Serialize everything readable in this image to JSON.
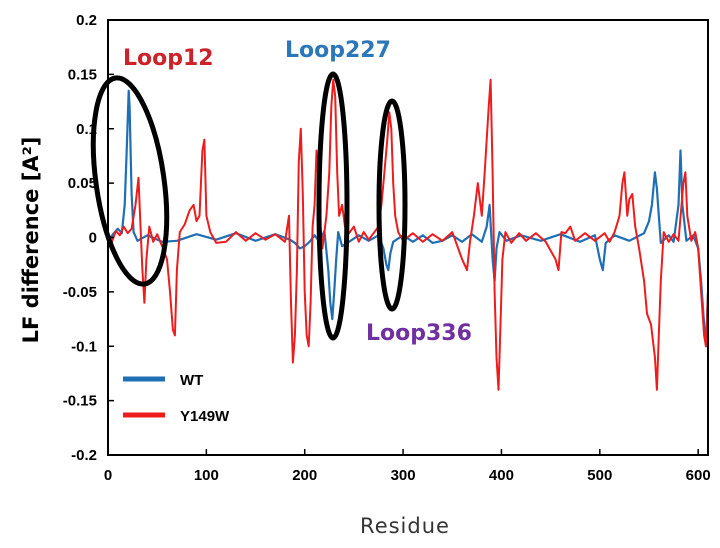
{
  "chart_data": {
    "type": "line",
    "title": "",
    "xlabel": "Residue",
    "ylabel": "LF difference [A²]",
    "xlim": [
      0,
      610
    ],
    "ylim": [
      -0.2,
      0.2
    ],
    "xticks": [
      0,
      100,
      200,
      300,
      400,
      500,
      600
    ],
    "yticks": [
      0.2,
      0.15,
      0.1,
      0.05,
      0,
      -0.05,
      -0.1,
      -0.15,
      -0.2
    ],
    "ytick_labels": [
      "0.2",
      "0.15",
      "0.1",
      "0.05",
      "0",
      "-0.05",
      "-0.1",
      "-0.15",
      "-0.2"
    ],
    "grid": false,
    "legend_position": "bottom-left",
    "series": [
      {
        "name": "WT",
        "color": "#1f6fb5",
        "points": [
          [
            0,
            -0.005
          ],
          [
            5,
            0.003
          ],
          [
            10,
            0.008
          ],
          [
            14,
            0.004
          ],
          [
            17,
            0.03
          ],
          [
            19,
            0.08
          ],
          [
            21,
            0.135
          ],
          [
            22,
            0.12
          ],
          [
            24,
            0.04
          ],
          [
            26,
            0.005
          ],
          [
            30,
            -0.003
          ],
          [
            40,
            0.002
          ],
          [
            55,
            -0.004
          ],
          [
            70,
            -0.003
          ],
          [
            90,
            0.003
          ],
          [
            110,
            -0.002
          ],
          [
            130,
            0.004
          ],
          [
            150,
            -0.003
          ],
          [
            170,
            0.003
          ],
          [
            185,
            -0.002
          ],
          [
            190,
            -0.005
          ],
          [
            195,
            -0.01
          ],
          [
            200,
            -0.008
          ],
          [
            205,
            -0.004
          ],
          [
            210,
            0.002
          ],
          [
            215,
            -0.004
          ],
          [
            220,
            0.006
          ],
          [
            224,
            -0.03
          ],
          [
            226,
            -0.06
          ],
          [
            228,
            -0.075
          ],
          [
            230,
            -0.05
          ],
          [
            232,
            -0.02
          ],
          [
            234,
            0.005
          ],
          [
            238,
            -0.008
          ],
          [
            245,
            -0.004
          ],
          [
            255,
            0.002
          ],
          [
            265,
            -0.003
          ],
          [
            275,
            0.002
          ],
          [
            280,
            -0.01
          ],
          [
            283,
            -0.025
          ],
          [
            285,
            -0.03
          ],
          [
            287,
            -0.015
          ],
          [
            290,
            -0.004
          ],
          [
            300,
            0.002
          ],
          [
            310,
            -0.004
          ],
          [
            320,
            0.002
          ],
          [
            330,
            -0.005
          ],
          [
            340,
            -0.003
          ],
          [
            350,
            0.002
          ],
          [
            360,
            -0.004
          ],
          [
            370,
            0.003
          ],
          [
            380,
            -0.004
          ],
          [
            385,
            0.01
          ],
          [
            388,
            0.03
          ],
          [
            391,
            -0.02
          ],
          [
            393,
            -0.04
          ],
          [
            395,
            -0.01
          ],
          [
            398,
            0.005
          ],
          [
            405,
            -0.003
          ],
          [
            420,
            0.002
          ],
          [
            440,
            -0.003
          ],
          [
            460,
            0.003
          ],
          [
            480,
            -0.004
          ],
          [
            495,
            0.002
          ],
          [
            500,
            -0.02
          ],
          [
            503,
            -0.03
          ],
          [
            506,
            -0.005
          ],
          [
            515,
            0.002
          ],
          [
            530,
            -0.003
          ],
          [
            545,
            0.004
          ],
          [
            550,
            0.015
          ],
          [
            553,
            0.03
          ],
          [
            556,
            0.06
          ],
          [
            558,
            0.045
          ],
          [
            560,
            0.02
          ],
          [
            562,
            -0.005
          ],
          [
            570,
            0.002
          ],
          [
            575,
            -0.004
          ],
          [
            580,
            0.03
          ],
          [
            582,
            0.08
          ],
          [
            584,
            0.03
          ],
          [
            588,
            -0.003
          ],
          [
            595,
            0.002
          ],
          [
            600,
            -0.01
          ],
          [
            603,
            -0.04
          ],
          [
            606,
            -0.08
          ],
          [
            608,
            -0.1
          ],
          [
            610,
            -0.05
          ]
        ]
      },
      {
        "name": "Y149W",
        "color": "#ee1c1c",
        "points": [
          [
            0,
            0.0
          ],
          [
            4,
            -0.004
          ],
          [
            8,
            0.006
          ],
          [
            12,
            0.002
          ],
          [
            16,
            0.01
          ],
          [
            20,
            0.004
          ],
          [
            24,
            0.008
          ],
          [
            28,
            0.03
          ],
          [
            31,
            0.055
          ],
          [
            33,
            0.01
          ],
          [
            35,
            -0.03
          ],
          [
            37,
            -0.06
          ],
          [
            39,
            -0.02
          ],
          [
            42,
            0.01
          ],
          [
            46,
            -0.004
          ],
          [
            50,
            0.003
          ],
          [
            55,
            -0.008
          ],
          [
            60,
            -0.02
          ],
          [
            63,
            -0.05
          ],
          [
            66,
            -0.085
          ],
          [
            68,
            -0.09
          ],
          [
            70,
            -0.03
          ],
          [
            73,
            0.005
          ],
          [
            78,
            0.012
          ],
          [
            83,
            0.025
          ],
          [
            87,
            0.03
          ],
          [
            90,
            0.015
          ],
          [
            93,
            0.02
          ],
          [
            96,
            0.08
          ],
          [
            98,
            0.09
          ],
          [
            100,
            0.02
          ],
          [
            104,
            0.005
          ],
          [
            110,
            -0.005
          ],
          [
            120,
            -0.004
          ],
          [
            130,
            0.005
          ],
          [
            140,
            -0.003
          ],
          [
            150,
            0.004
          ],
          [
            160,
            -0.002
          ],
          [
            170,
            0.003
          ],
          [
            180,
            -0.004
          ],
          [
            184,
            0.02
          ],
          [
            186,
            -0.06
          ],
          [
            188,
            -0.115
          ],
          [
            190,
            -0.09
          ],
          [
            192,
            -0.03
          ],
          [
            194,
            0.07
          ],
          [
            196,
            0.1
          ],
          [
            198,
            0.04
          ],
          [
            200,
            -0.05
          ],
          [
            202,
            -0.09
          ],
          [
            204,
            -0.1
          ],
          [
            206,
            -0.06
          ],
          [
            208,
            0.01
          ],
          [
            210,
            0.03
          ],
          [
            212,
            0.08
          ],
          [
            214,
            0.05
          ],
          [
            216,
            0.01
          ],
          [
            218,
            -0.01
          ],
          [
            222,
            0.02
          ],
          [
            225,
            0.06
          ],
          [
            227,
            0.12
          ],
          [
            229,
            0.145
          ],
          [
            231,
            0.13
          ],
          [
            233,
            0.06
          ],
          [
            235,
            0.02
          ],
          [
            238,
            0.03
          ],
          [
            241,
            0.01
          ],
          [
            245,
            0.004
          ],
          [
            250,
            0.01
          ],
          [
            255,
            -0.004
          ],
          [
            260,
            0.005
          ],
          [
            265,
            -0.002
          ],
          [
            270,
            0.004
          ],
          [
            275,
            0.01
          ],
          [
            278,
            0.03
          ],
          [
            281,
            0.06
          ],
          [
            284,
            0.09
          ],
          [
            286,
            0.115
          ],
          [
            288,
            0.1
          ],
          [
            290,
            0.05
          ],
          [
            292,
            0.02
          ],
          [
            295,
            0.005
          ],
          [
            300,
            -0.003
          ],
          [
            310,
            0.004
          ],
          [
            320,
            -0.004
          ],
          [
            330,
            0.003
          ],
          [
            340,
            -0.003
          ],
          [
            350,
            0.005
          ],
          [
            360,
            -0.02
          ],
          [
            365,
            -0.03
          ],
          [
            368,
            -0.004
          ],
          [
            372,
            0.02
          ],
          [
            376,
            0.05
          ],
          [
            380,
            0.02
          ],
          [
            383,
            0.06
          ],
          [
            385,
            0.09
          ],
          [
            387,
            0.12
          ],
          [
            389,
            0.145
          ],
          [
            391,
            0.06
          ],
          [
            393,
            -0.05
          ],
          [
            395,
            -0.11
          ],
          [
            397,
            -0.14
          ],
          [
            399,
            -0.08
          ],
          [
            401,
            -0.02
          ],
          [
            404,
            0.005
          ],
          [
            410,
            -0.005
          ],
          [
            418,
            0.004
          ],
          [
            425,
            -0.003
          ],
          [
            435,
            0.004
          ],
          [
            445,
            -0.004
          ],
          [
            455,
            -0.02
          ],
          [
            458,
            -0.03
          ],
          [
            461,
            0.005
          ],
          [
            465,
            0.004
          ],
          [
            470,
            0.01
          ],
          [
            475,
            -0.003
          ],
          [
            485,
            0.004
          ],
          [
            495,
            -0.003
          ],
          [
            505,
            0.004
          ],
          [
            510,
            -0.004
          ],
          [
            515,
            0.005
          ],
          [
            520,
            0.02
          ],
          [
            523,
            0.05
          ],
          [
            525,
            0.06
          ],
          [
            528,
            0.02
          ],
          [
            530,
            0.035
          ],
          [
            533,
            0.04
          ],
          [
            536,
            0.01
          ],
          [
            540,
            -0.01
          ],
          [
            545,
            -0.04
          ],
          [
            548,
            -0.07
          ],
          [
            552,
            -0.08
          ],
          [
            556,
            -0.11
          ],
          [
            558,
            -0.14
          ],
          [
            560,
            -0.09
          ],
          [
            562,
            -0.04
          ],
          [
            565,
            0.005
          ],
          [
            570,
            -0.004
          ],
          [
            575,
            0.003
          ],
          [
            580,
            -0.003
          ],
          [
            585,
            0.05
          ],
          [
            587,
            0.06
          ],
          [
            589,
            0.02
          ],
          [
            593,
            -0.003
          ],
          [
            597,
            0.005
          ],
          [
            600,
            -0.01
          ],
          [
            603,
            -0.05
          ],
          [
            606,
            -0.09
          ],
          [
            608,
            -0.1
          ],
          [
            610,
            -0.05
          ]
        ]
      }
    ],
    "annotations": [
      {
        "text": "Loop12",
        "color": "#cc2229"
      },
      {
        "text": "Loop227",
        "color": "#2c77b9"
      },
      {
        "text": "Loop336",
        "color": "#7030a0"
      }
    ]
  }
}
